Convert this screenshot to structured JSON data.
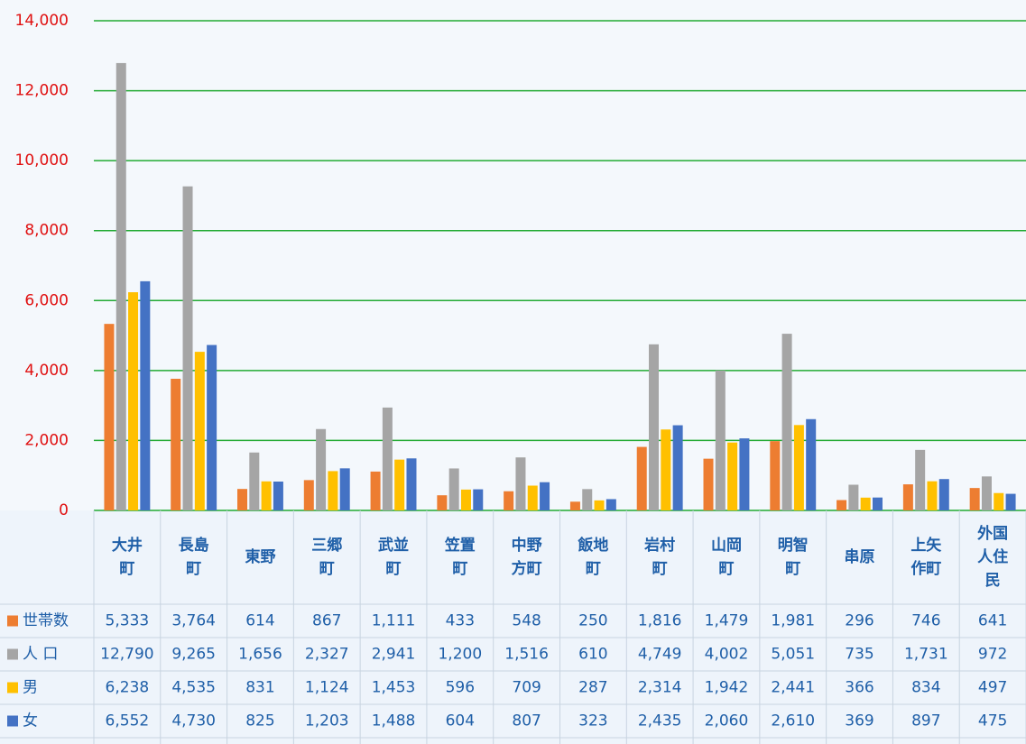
{
  "chart_data": {
    "type": "bar",
    "categories": [
      "大井町",
      "長島町",
      "東野",
      "三郷町",
      "武並町",
      "笠置町",
      "中野方町",
      "飯地町",
      "岩村町",
      "山岡町",
      "明智町",
      "串原",
      "上矢作町",
      "外国人住民"
    ],
    "series": [
      {
        "name": "世帯数",
        "color": "#ED7D31",
        "values": [
          5333,
          3764,
          614,
          867,
          1111,
          433,
          548,
          250,
          1816,
          1479,
          1981,
          296,
          746,
          641
        ],
        "value_labels": [
          "5,333",
          "3,764",
          "614",
          "867",
          "1,111",
          "433",
          "548",
          "250",
          "1,816",
          "1,479",
          "1,981",
          "296",
          "746",
          "641"
        ]
      },
      {
        "name": "人 口",
        "color": "#A5A5A5",
        "values": [
          12790,
          9265,
          1656,
          2327,
          2941,
          1200,
          1516,
          610,
          4749,
          4002,
          5051,
          735,
          1731,
          972
        ],
        "value_labels": [
          "12,790",
          "9,265",
          "1,656",
          "2,327",
          "2,941",
          "1,200",
          "1,516",
          "610",
          "4,749",
          "4,002",
          "5,051",
          "735",
          "1,731",
          "972"
        ]
      },
      {
        "name": "男",
        "color": "#FFC000",
        "values": [
          6238,
          4535,
          831,
          1124,
          1453,
          596,
          709,
          287,
          2314,
          1942,
          2441,
          366,
          834,
          497
        ],
        "value_labels": [
          "6,238",
          "4,535",
          "831",
          "1,124",
          "1,453",
          "596",
          "709",
          "287",
          "2,314",
          "1,942",
          "2,441",
          "366",
          "834",
          "497"
        ]
      },
      {
        "name": "女",
        "color": "#4472C4",
        "values": [
          6552,
          4730,
          825,
          1203,
          1488,
          604,
          807,
          323,
          2435,
          2060,
          2610,
          369,
          897,
          475
        ],
        "value_labels": [
          "6,552",
          "4,730",
          "825",
          "1,203",
          "1,488",
          "604",
          "807",
          "323",
          "2,435",
          "2,060",
          "2,610",
          "369",
          "897",
          "475"
        ]
      }
    ],
    "ylim": [
      0,
      14000
    ],
    "yticks": [
      0,
      {
        "value": 2000,
        "label": "2,000"
      },
      {
        "value": 4000,
        "label": "4,000"
      },
      {
        "value": 6000,
        "label": "6,000"
      },
      {
        "value": 8000,
        "label": "8,000"
      },
      {
        "value": 10000,
        "label": "10,000"
      },
      {
        "value": 12000,
        "label": "12,000"
      },
      {
        "value": 14000,
        "label": "14,000"
      }
    ],
    "grid": true,
    "grid_color": "#22aa33"
  }
}
